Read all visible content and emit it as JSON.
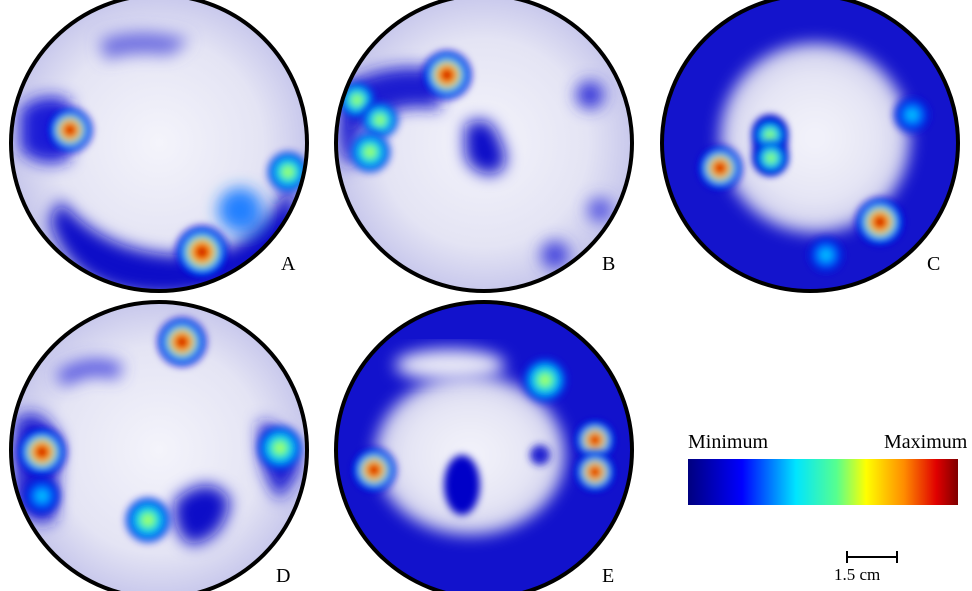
{
  "panels": [
    {
      "letter": "A"
    },
    {
      "letter": "B"
    },
    {
      "letter": "C"
    },
    {
      "letter": "D"
    },
    {
      "letter": "E"
    }
  ],
  "legend": {
    "min_label": "Minimum",
    "max_label": "Maximum",
    "colormap": [
      "#00007f",
      "#0000ff",
      "#00e5ff",
      "#56ff8f",
      "#ffff00",
      "#ff8c00",
      "#e00000",
      "#7f0000"
    ]
  },
  "scale": {
    "label": "1.5 cm"
  },
  "colors": {
    "background": "#ffffff",
    "outline": "#000000",
    "low": "#1a1acc"
  }
}
